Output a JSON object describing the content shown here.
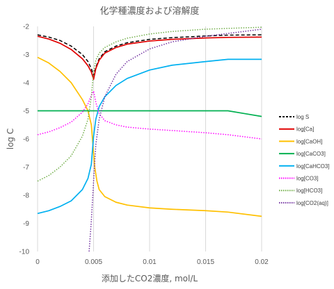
{
  "chart_data": {
    "type": "line",
    "title": "化学種濃度および溶解度",
    "xlabel": "添加したCO2濃度, mol/L",
    "ylabel": "log C",
    "xlim": [
      0,
      0.02
    ],
    "ylim": [
      -10,
      -2
    ],
    "x_ticks": [
      "0",
      "0.005",
      "0.01",
      "0.015",
      "0.02"
    ],
    "y_ticks": [
      "-2",
      "-3",
      "-4",
      "-5",
      "-6",
      "-7",
      "-8",
      "-9",
      "-10"
    ],
    "grid": "vertical",
    "legend_position": "right",
    "series": [
      {
        "name": "log S",
        "color": "#000000",
        "dash": "dashed",
        "x": [
          0,
          0.001,
          0.002,
          0.003,
          0.004,
          0.0045,
          0.0048,
          0.005,
          0.0052,
          0.0055,
          0.006,
          0.007,
          0.008,
          0.01,
          0.012,
          0.015,
          0.017,
          0.02
        ],
        "y": [
          -2.3,
          -2.38,
          -2.5,
          -2.7,
          -3.0,
          -3.25,
          -3.5,
          -3.75,
          -3.45,
          -3.15,
          -2.9,
          -2.7,
          -2.58,
          -2.46,
          -2.4,
          -2.34,
          -2.31,
          -2.3
        ]
      },
      {
        "name": "log[Ca]",
        "color": "#e00000",
        "dash": "solid",
        "x": [
          0,
          0.001,
          0.002,
          0.003,
          0.004,
          0.0045,
          0.0048,
          0.005,
          0.0052,
          0.0055,
          0.006,
          0.007,
          0.008,
          0.01,
          0.012,
          0.015,
          0.017,
          0.02
        ],
        "y": [
          -2.35,
          -2.45,
          -2.6,
          -2.82,
          -3.15,
          -3.4,
          -3.62,
          -3.88,
          -3.5,
          -3.2,
          -2.95,
          -2.75,
          -2.63,
          -2.52,
          -2.46,
          -2.41,
          -2.39,
          -2.38
        ]
      },
      {
        "name": "log[CaOH]",
        "color": "#ffc000",
        "dash": "solid",
        "x": [
          0,
          0.001,
          0.002,
          0.003,
          0.004,
          0.0045,
          0.0048,
          0.005,
          0.0051,
          0.0053,
          0.0055,
          0.006,
          0.007,
          0.008,
          0.01,
          0.012,
          0.015,
          0.017,
          0.02
        ],
        "y": [
          -3.1,
          -3.3,
          -3.6,
          -4.0,
          -4.6,
          -5.0,
          -5.5,
          -6.5,
          -7.0,
          -7.5,
          -7.8,
          -8.05,
          -8.25,
          -8.35,
          -8.45,
          -8.5,
          -8.55,
          -8.6,
          -8.75
        ]
      },
      {
        "name": "log[CaCO3]",
        "color": "#00b050",
        "dash": "solid",
        "x": [
          0,
          0.005,
          0.01,
          0.015,
          0.017,
          0.0185,
          0.02
        ],
        "y": [
          -5.0,
          -5.0,
          -5.0,
          -5.0,
          -5.0,
          -5.1,
          -5.2
        ]
      },
      {
        "name": "log[CaHCO3]",
        "color": "#00b0f0",
        "dash": "solid",
        "x": [
          0,
          0.001,
          0.002,
          0.003,
          0.004,
          0.0045,
          0.0048,
          0.005,
          0.0052,
          0.0055,
          0.006,
          0.007,
          0.008,
          0.01,
          0.012,
          0.015,
          0.017,
          0.02
        ],
        "y": [
          -8.65,
          -8.55,
          -8.4,
          -8.2,
          -7.8,
          -7.4,
          -6.9,
          -5.9,
          -5.3,
          -4.85,
          -4.5,
          -4.1,
          -3.85,
          -3.55,
          -3.38,
          -3.25,
          -3.17,
          -3.17
        ]
      },
      {
        "name": "log[CO3]",
        "color": "#ff00ff",
        "dash": "dotted",
        "x": [
          0,
          0.001,
          0.002,
          0.003,
          0.004,
          0.0045,
          0.0048,
          0.005,
          0.0052,
          0.0055,
          0.006,
          0.007,
          0.008,
          0.01,
          0.012,
          0.015,
          0.017,
          0.02
        ],
        "y": [
          -5.85,
          -5.75,
          -5.6,
          -5.4,
          -5.05,
          -4.75,
          -4.45,
          -4.3,
          -4.7,
          -5.1,
          -5.35,
          -5.5,
          -5.58,
          -5.65,
          -5.7,
          -5.78,
          -5.85,
          -6.0
        ]
      },
      {
        "name": "log[HCO3]",
        "color": "#70ad47",
        "dash": "dotted",
        "x": [
          0,
          0.001,
          0.002,
          0.003,
          0.004,
          0.0045,
          0.0048,
          0.005,
          0.0052,
          0.0055,
          0.006,
          0.007,
          0.008,
          0.01,
          0.012,
          0.015,
          0.017,
          0.02
        ],
        "y": [
          -7.5,
          -7.3,
          -7.0,
          -6.6,
          -5.9,
          -5.3,
          -4.5,
          -3.6,
          -3.2,
          -2.95,
          -2.75,
          -2.55,
          -2.42,
          -2.27,
          -2.18,
          -2.1,
          -2.07,
          -2.03
        ]
      },
      {
        "name": "log[CO2(aq)]",
        "color": "#7030a0",
        "dash": "dotted",
        "x": [
          0.0046,
          0.0048,
          0.005,
          0.0052,
          0.0055,
          0.006,
          0.007,
          0.008,
          0.01,
          0.012,
          0.015,
          0.017,
          0.02
        ],
        "y": [
          -10.0,
          -8.9,
          -7.5,
          -6.2,
          -5.3,
          -4.5,
          -3.7,
          -3.25,
          -2.8,
          -2.55,
          -2.35,
          -2.25,
          -2.1
        ]
      }
    ]
  }
}
